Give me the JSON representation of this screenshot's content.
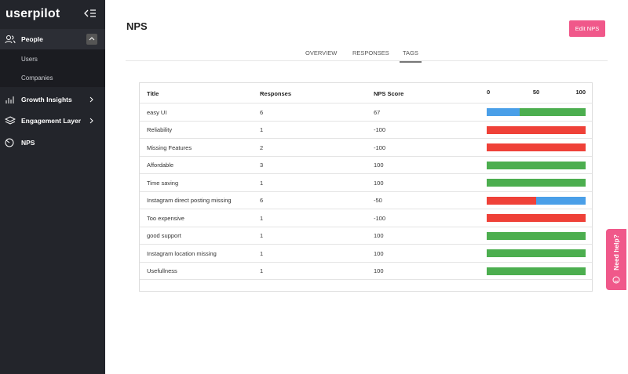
{
  "sidebar": {
    "logo": "userpilot",
    "items": [
      "People",
      "Users",
      "Companies",
      "Growth Insights",
      "Engagement Layer",
      "NPS"
    ]
  },
  "header": {
    "title": "NPS",
    "button": "Edit NPS"
  },
  "tabs": [
    "OVERVIEW",
    "RESPONSES",
    "TAGS"
  ],
  "table": {
    "columns": [
      "Title",
      "Responses",
      "NPS Score"
    ],
    "scale": [
      0,
      50,
      100
    ],
    "bar_colors": [
      "#ef4138",
      "#4a9fe8",
      "#4cae4f"
    ],
    "rows": [
      {
        "title": "easy UI",
        "responses": 6,
        "nps": 67,
        "bar": [
          0,
          33,
          67
        ]
      },
      {
        "title": "Reliability",
        "responses": 1,
        "nps": -100,
        "bar": [
          100,
          0,
          0
        ]
      },
      {
        "title": "Missing Features",
        "responses": 2,
        "nps": -100,
        "bar": [
          100,
          0,
          0
        ]
      },
      {
        "title": "Affordable",
        "responses": 3,
        "nps": 100,
        "bar": [
          0,
          0,
          100
        ]
      },
      {
        "title": "Time saving",
        "responses": 1,
        "nps": 100,
        "bar": [
          0,
          0,
          100
        ]
      },
      {
        "title": "Instagram direct posting missing",
        "responses": 6,
        "nps": -50,
        "bar": [
          50,
          50,
          0
        ]
      },
      {
        "title": "Too expensive",
        "responses": 1,
        "nps": -100,
        "bar": [
          100,
          0,
          0
        ]
      },
      {
        "title": "good support",
        "responses": 1,
        "nps": 100,
        "bar": [
          0,
          0,
          100
        ]
      },
      {
        "title": "Instagram location missing",
        "responses": 1,
        "nps": 100,
        "bar": [
          0,
          0,
          100
        ]
      },
      {
        "title": "Usefullness",
        "responses": 1,
        "nps": 100,
        "bar": [
          0,
          0,
          100
        ]
      }
    ]
  },
  "help": "Need help?"
}
